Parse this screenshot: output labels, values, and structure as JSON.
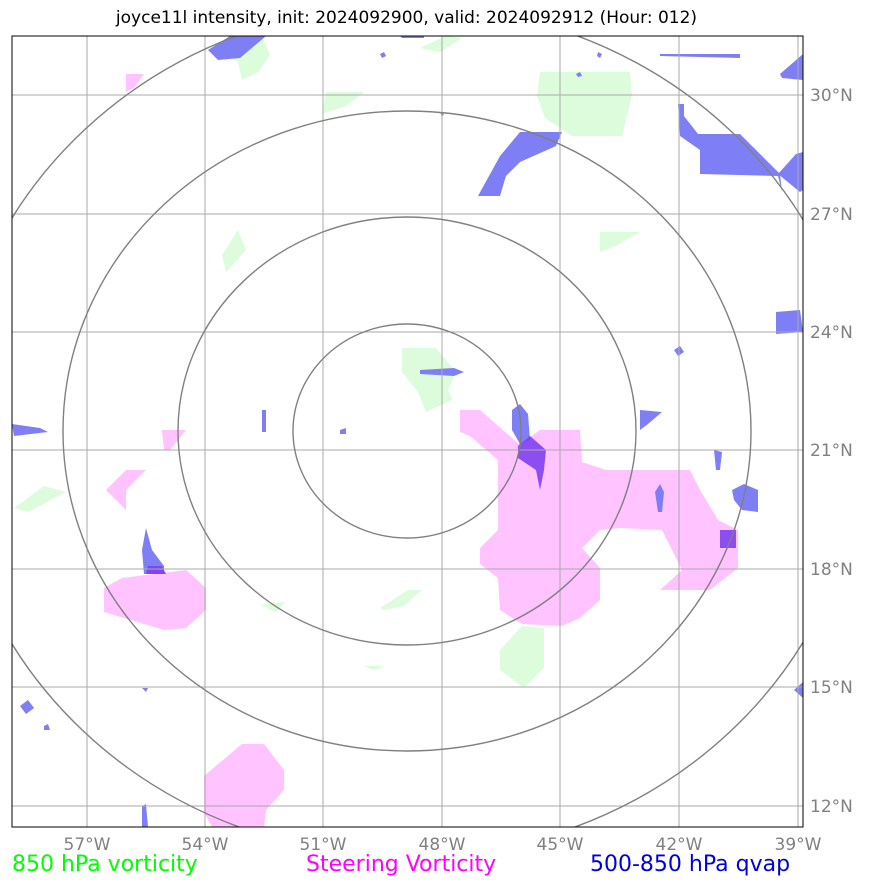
{
  "title": "joyce11l intensity, init: 2024092900, valid: 2024092912 (Hour: 012)",
  "lat_labels": [
    "30°N",
    "27°N",
    "24°N",
    "21°N",
    "18°N",
    "15°N",
    "12°N"
  ],
  "lon_labels": [
    "57°W",
    "54°W",
    "51°W",
    "48°W",
    "45°W",
    "42°W",
    "39°W"
  ],
  "legend": {
    "vort850": {
      "label": "850 hPa vorticity",
      "color": "#00ff00"
    },
    "steering": {
      "label": "Steering Vorticity",
      "color": "#ff00ff"
    },
    "qvap": {
      "label": "500-850 hPa qvap",
      "color": "#0000dd"
    }
  },
  "colors": {
    "vort_fill": "#dcfcdc",
    "steer_fill": "#ffc0ff",
    "qvap_fill": "#7878f4",
    "overlap_fill": "#8040f0",
    "grid": "#aaaaaa",
    "rings": "#808080",
    "tick_text": "#808080"
  }
}
